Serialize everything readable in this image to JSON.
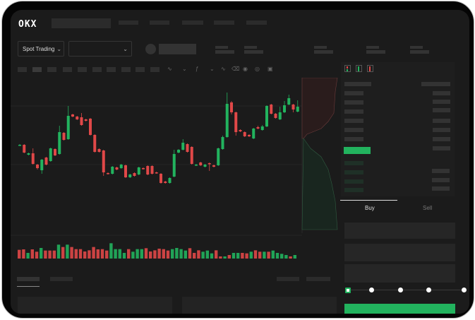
{
  "header": {
    "logo": "OKX"
  },
  "market_bar": {
    "mode_dropdown": "Spot Trading",
    "pair_dropdown": ""
  },
  "orderbook": {
    "view_icons": [
      "orderbook-both-icon",
      "orderbook-bids-icon",
      "orderbook-asks-icon"
    ]
  },
  "trade_form": {
    "tabs": [
      {
        "label": "Buy",
        "active": true
      },
      {
        "label": "Sell",
        "active": false
      }
    ],
    "slider_percent": 0
  },
  "colors": {
    "up": "#22b35e",
    "down": "#e04848",
    "background": "#1b1b1b"
  },
  "chart_data": {
    "type": "candlestick",
    "candles": [
      [
        97,
        97,
        98,
        96
      ],
      [
        97,
        86,
        98,
        85
      ],
      [
        83,
        85,
        86,
        82
      ],
      [
        85,
        70,
        92,
        69
      ],
      [
        69,
        64,
        70,
        62
      ],
      [
        61,
        76,
        77,
        56
      ],
      [
        79,
        69,
        80,
        68
      ],
      [
        74,
        92,
        93,
        73
      ],
      [
        91,
        82,
        92,
        81
      ],
      [
        84,
        115,
        124,
        83
      ],
      [
        114,
        104,
        115,
        103
      ],
      [
        105,
        138,
        152,
        104
      ],
      [
        140,
        137,
        141,
        136
      ],
      [
        137,
        133,
        138,
        132
      ],
      [
        136,
        125,
        142,
        124
      ],
      [
        133,
        131,
        134,
        130
      ],
      [
        134,
        111,
        135,
        110
      ],
      [
        111,
        87,
        112,
        86
      ],
      [
        91,
        87,
        92,
        86
      ],
      [
        89,
        58,
        90,
        53
      ],
      [
        57,
        56,
        58,
        55
      ],
      [
        56,
        66,
        67,
        55
      ],
      [
        65,
        62,
        66,
        61
      ],
      [
        64,
        69,
        70,
        63
      ],
      [
        68,
        51,
        69,
        50
      ],
      [
        51,
        55,
        56,
        50
      ],
      [
        57,
        53,
        58,
        52
      ],
      [
        55,
        65,
        66,
        54
      ],
      [
        64,
        63,
        65,
        62
      ],
      [
        67,
        55,
        68,
        54
      ],
      [
        67,
        56,
        68,
        55
      ],
      [
        58,
        57,
        59,
        56
      ],
      [
        56,
        43,
        57,
        42
      ],
      [
        45,
        43,
        46,
        42
      ],
      [
        43,
        50,
        51,
        42
      ],
      [
        52,
        84,
        90,
        51
      ],
      [
        86,
        90,
        91,
        85
      ],
      [
        90,
        100,
        105,
        89
      ],
      [
        98,
        87,
        99,
        86
      ],
      [
        94,
        70,
        95,
        69
      ],
      [
        68,
        69,
        70,
        67
      ],
      [
        72,
        68,
        73,
        67
      ],
      [
        66,
        69,
        70,
        65
      ],
      [
        71,
        70,
        72,
        60
      ],
      [
        68,
        66,
        69,
        65
      ],
      [
        68,
        92,
        93,
        67
      ],
      [
        91,
        108,
        110,
        90
      ],
      [
        108,
        155,
        171,
        107
      ],
      [
        157,
        143,
        159,
        140
      ],
      [
        143,
        115,
        144,
        110
      ],
      [
        118,
        116,
        119,
        115
      ],
      [
        115,
        109,
        116,
        108
      ],
      [
        111,
        109,
        112,
        108
      ],
      [
        106,
        120,
        121,
        105
      ],
      [
        122,
        120,
        124,
        119
      ],
      [
        118,
        123,
        125,
        117
      ],
      [
        123,
        152,
        153,
        122
      ],
      [
        154,
        141,
        155,
        140
      ],
      [
        141,
        135,
        142,
        134
      ],
      [
        133,
        143,
        151,
        132
      ],
      [
        143,
        153,
        159,
        142
      ],
      [
        154,
        163,
        168,
        153
      ],
      [
        154,
        147,
        155,
        143
      ],
      [
        144,
        151,
        160,
        143
      ]
    ],
    "volume": [
      {
        "v": 37,
        "up": false
      },
      {
        "v": 39,
        "up": false
      },
      {
        "v": 24,
        "up": true
      },
      {
        "v": 39,
        "up": false
      },
      {
        "v": 29,
        "up": false
      },
      {
        "v": 45,
        "up": true
      },
      {
        "v": 34,
        "up": false
      },
      {
        "v": 34,
        "up": false
      },
      {
        "v": 34,
        "up": false
      },
      {
        "v": 59,
        "up": true
      },
      {
        "v": 49,
        "up": false
      },
      {
        "v": 59,
        "up": true
      },
      {
        "v": 49,
        "up": false
      },
      {
        "v": 40,
        "up": false
      },
      {
        "v": 40,
        "up": false
      },
      {
        "v": 30,
        "up": false
      },
      {
        "v": 35,
        "up": false
      },
      {
        "v": 49,
        "up": false
      },
      {
        "v": 39,
        "up": false
      },
      {
        "v": 40,
        "up": false
      },
      {
        "v": 34,
        "up": false
      },
      {
        "v": 65,
        "up": true
      },
      {
        "v": 40,
        "up": true
      },
      {
        "v": 40,
        "up": true
      },
      {
        "v": 24,
        "up": true
      },
      {
        "v": 40,
        "up": false
      },
      {
        "v": 29,
        "up": true
      },
      {
        "v": 40,
        "up": true
      },
      {
        "v": 40,
        "up": true
      },
      {
        "v": 44,
        "up": false
      },
      {
        "v": 30,
        "up": false
      },
      {
        "v": 35,
        "up": false
      },
      {
        "v": 42,
        "up": false
      },
      {
        "v": 40,
        "up": false
      },
      {
        "v": 34,
        "up": false
      },
      {
        "v": 40,
        "up": true
      },
      {
        "v": 45,
        "up": true
      },
      {
        "v": 40,
        "up": true
      },
      {
        "v": 34,
        "up": true
      },
      {
        "v": 44,
        "up": false
      },
      {
        "v": 24,
        "up": false
      },
      {
        "v": 35,
        "up": false
      },
      {
        "v": 29,
        "up": true
      },
      {
        "v": 34,
        "up": true
      },
      {
        "v": 22,
        "up": true
      },
      {
        "v": 35,
        "up": false
      },
      {
        "v": 9,
        "up": false
      },
      {
        "v": 9,
        "up": true
      },
      {
        "v": 15,
        "up": false
      },
      {
        "v": 24,
        "up": true
      },
      {
        "v": 24,
        "up": true
      },
      {
        "v": 24,
        "up": false
      },
      {
        "v": 22,
        "up": false
      },
      {
        "v": 29,
        "up": true
      },
      {
        "v": 35,
        "up": false
      },
      {
        "v": 29,
        "up": false
      },
      {
        "v": 29,
        "up": true
      },
      {
        "v": 29,
        "up": false
      },
      {
        "v": 34,
        "up": true
      },
      {
        "v": 24,
        "up": true
      },
      {
        "v": 20,
        "up": true
      },
      {
        "v": 15,
        "up": true
      },
      {
        "v": 9,
        "up": false
      },
      {
        "v": 15,
        "up": true
      }
    ]
  }
}
